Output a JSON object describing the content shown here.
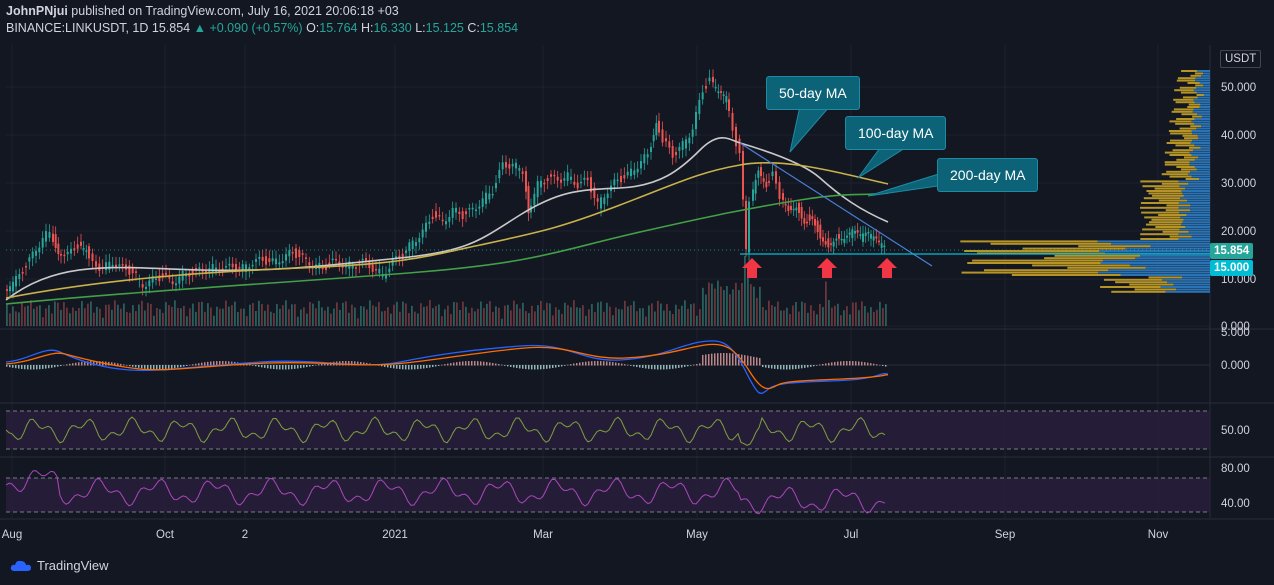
{
  "header": {
    "author": "JohnPNjui",
    "published_text": "published on TradingView.com, July 16, 2021 20:06:18 +03",
    "symbol": "BINANCE:LINKUSDT, 1D",
    "last_price": "15.854",
    "change": "▲ +0.090 (+0.57%)",
    "o_label": "O:",
    "o_value": "15.764",
    "h_label": "H:",
    "h_value": "16.330",
    "l_label": "L:",
    "l_value": "15.125",
    "c_label": "C:",
    "c_value": "15.854"
  },
  "currency_label": "USDT",
  "annotations": {
    "ma50": "50-day MA",
    "ma100": "100-day MA",
    "ma200": "200-day MA"
  },
  "price_tags": {
    "current": "15.854",
    "support": "15.000"
  },
  "price_axis": [
    "50.000",
    "40.000",
    "30.000",
    "20.000",
    "10.000",
    "0.000"
  ],
  "macd_axis": [
    "5.000",
    "0.000"
  ],
  "rsi1_axis": [
    "50.00"
  ],
  "rsi2_axis": [
    "80.00",
    "40.00"
  ],
  "time_axis": [
    "Aug",
    "Oct",
    "2",
    "2021",
    "Mar",
    "May",
    "Jul",
    "Sep",
    "Nov"
  ],
  "footer": {
    "brand": "TradingView"
  },
  "colors": {
    "up": "#26a69a",
    "down": "#ef5350",
    "ma50": "#c9c9c9",
    "ma100": "#c9b24a",
    "ma200": "#43a047",
    "macd": "#2962ff",
    "signal": "#ff6d00",
    "rsi1": "#7f9f3f",
    "rsi2": "#ab47bc",
    "vp_up": "#2d7dc4",
    "vp_down": "#c9a227",
    "support_line": "#00bcd4",
    "arrow": "#f23645"
  },
  "icons": {
    "brand": "tradingview-cloud-icon",
    "arrow": "arrow-up-icon"
  }
}
